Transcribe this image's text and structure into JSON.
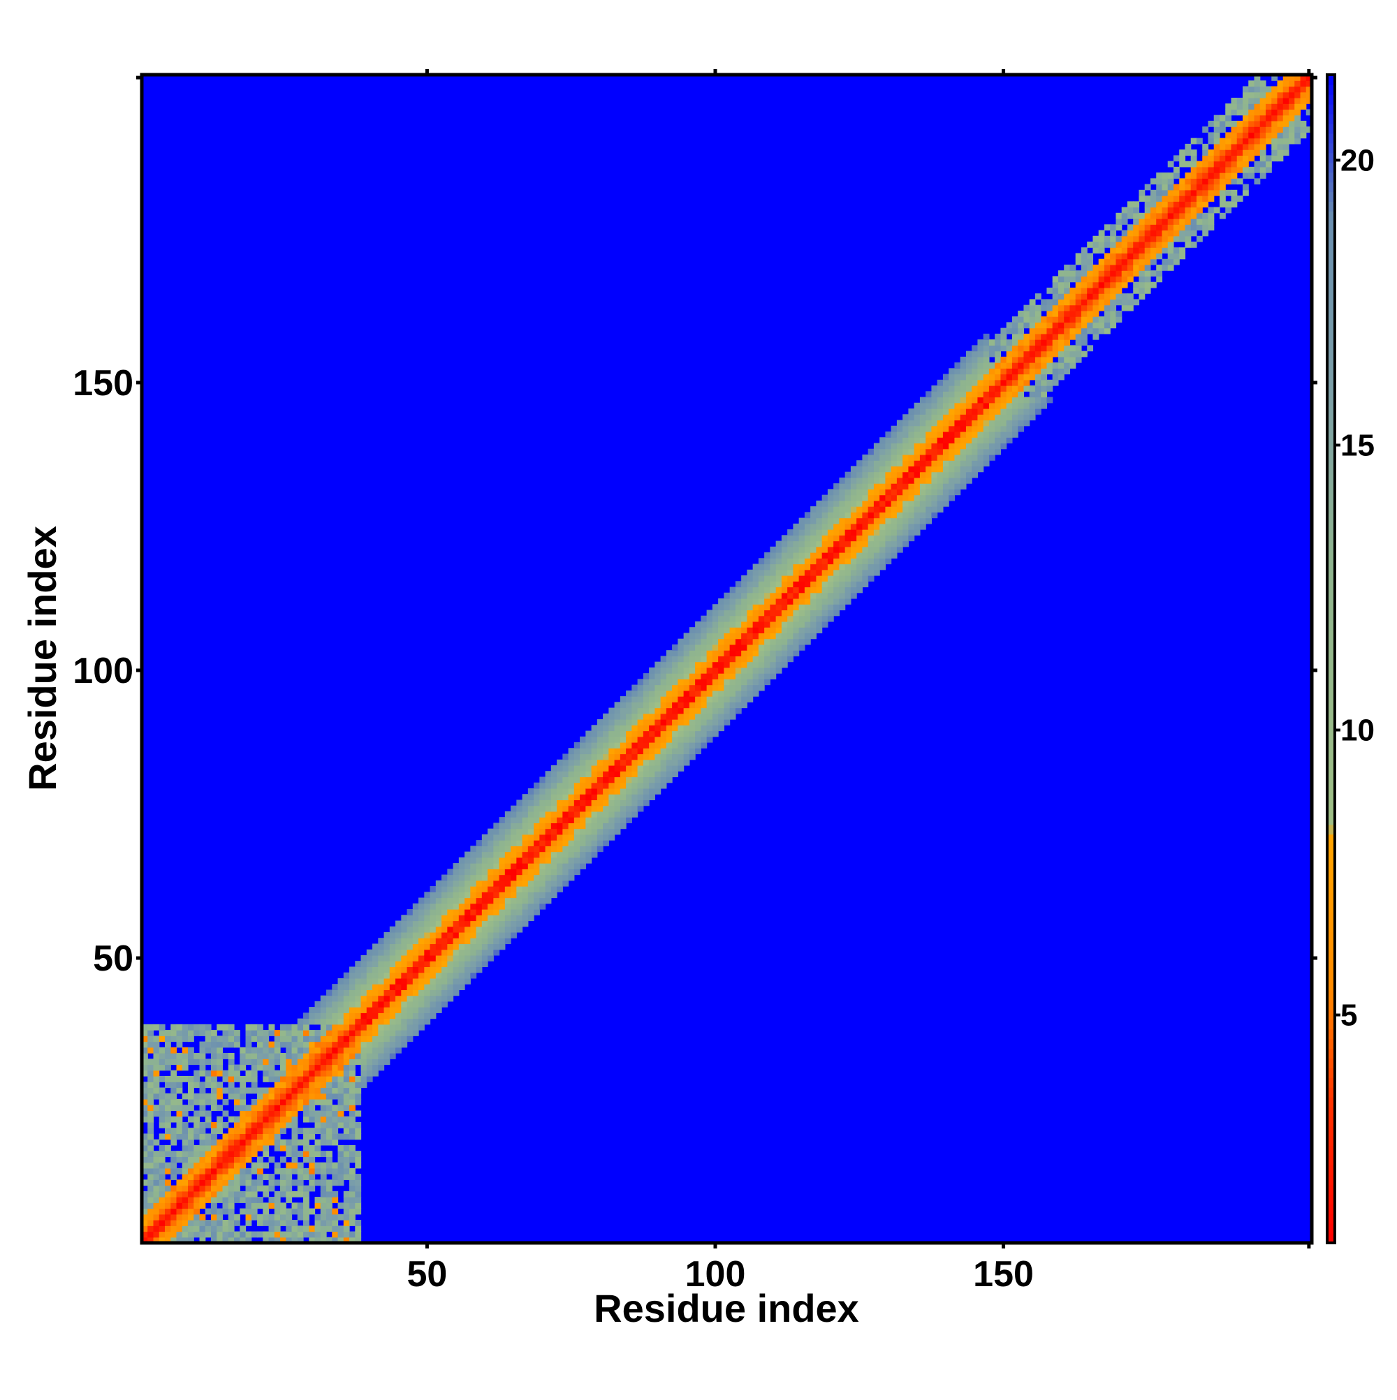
{
  "chart_data": {
    "type": "heatmap",
    "title": "",
    "xlabel": "Residue index",
    "ylabel": "Residue index",
    "n_residues": 203,
    "xlim": [
      1,
      203
    ],
    "ylim": [
      1,
      203
    ],
    "x_ticks": [
      50,
      100,
      150
    ],
    "y_ticks": [
      50,
      100,
      150
    ],
    "colorbar": {
      "range": [
        1,
        21.5
      ],
      "ticks": [
        5,
        10,
        15,
        20
      ],
      "colors": {
        "close": "#ff0000",
        "near": "#ff8c00",
        "mid": "#8fb48f",
        "far_mid": "#7da0a8",
        "far": "#0000ff"
      },
      "stops": [
        {
          "value": 1,
          "color": "#ff0000"
        },
        {
          "value": 3.5,
          "color": "#ff3300"
        },
        {
          "value": 5.5,
          "color": "#ff8c00"
        },
        {
          "value": 8.2,
          "color": "#ffa500"
        },
        {
          "value": 8.3,
          "color": "#9fbf86"
        },
        {
          "value": 13,
          "color": "#8fb48f"
        },
        {
          "value": 16,
          "color": "#7da0a8"
        },
        {
          "value": 19,
          "color": "#6b8fb0"
        },
        {
          "value": 21.5,
          "color": "#0000ff"
        }
      ]
    },
    "description_values": {
      "diagonal_distance": 0,
      "band_halfwidth_residues": 11,
      "background_value": 21.5
    },
    "regions": [
      {
        "residues": [
          1,
          38
        ],
        "pattern": "scattered"
      },
      {
        "residues": [
          38,
          150
        ],
        "pattern": "smooth_band"
      },
      {
        "residues": [
          150,
          203
        ],
        "pattern": "scattered"
      }
    ]
  }
}
